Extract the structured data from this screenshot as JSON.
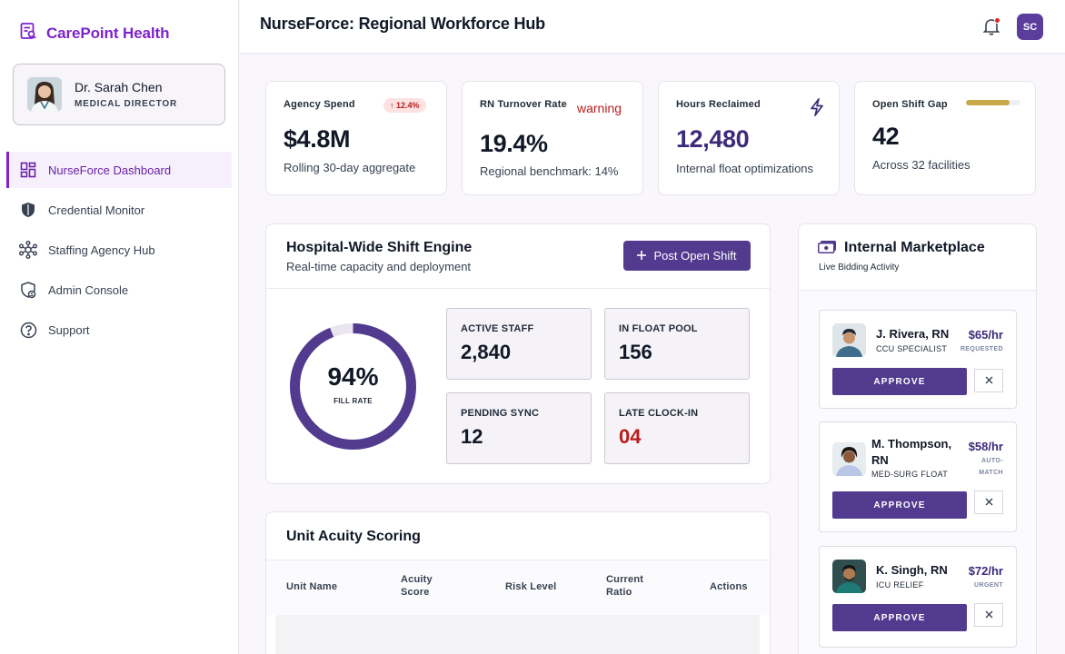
{
  "brand": {
    "name": "CarePoint Health"
  },
  "profile": {
    "name": "Dr. Sarah Chen",
    "role": "MEDICAL DIRECTOR"
  },
  "nav": {
    "items": [
      {
        "label": "NurseForce Dashboard",
        "icon": "dashboard-grid-icon",
        "active": true
      },
      {
        "label": "Credential Monitor",
        "icon": "shield-icon"
      },
      {
        "label": "Staffing Agency Hub",
        "icon": "network-hub-icon"
      },
      {
        "label": "Admin Console",
        "icon": "admin-shield-icon"
      },
      {
        "label": "Support",
        "icon": "help-circle-icon"
      }
    ]
  },
  "header": {
    "title": "NurseForce: Regional Workforce Hub",
    "user_initials": "SC"
  },
  "kpis": [
    {
      "label": "Agency Spend",
      "value": "$4.8M",
      "sub": "Rolling 30-day aggregate",
      "badge": "↑ 12.4%"
    },
    {
      "label": "RN Turnover Rate",
      "value": "19.4%",
      "sub": "Regional benchmark: 14%",
      "flag": "warning"
    },
    {
      "label": "Hours Reclaimed",
      "value": "12,480",
      "sub": "Internal float optimizations",
      "accent": "#3d2a7a"
    },
    {
      "label": "Open Shift Gap",
      "value": "42",
      "sub": "Across 32 facilities",
      "progress": 0.8
    }
  ],
  "engine": {
    "title": "Hospital-Wide Shift Engine",
    "subtitle": "Real-time capacity and deployment",
    "post_button": "Post Open Shift",
    "fill_rate": {
      "value": "94%",
      "label": "FILL RATE"
    },
    "stats": [
      {
        "label": "ACTIVE STAFF",
        "value": "2,840"
      },
      {
        "label": "IN FLOAT POOL",
        "value": "156"
      },
      {
        "label": "PENDING SYNC",
        "value": "12"
      },
      {
        "label": "LATE CLOCK-IN",
        "value": "04"
      }
    ]
  },
  "acuity": {
    "title": "Unit Acuity Scoring",
    "columns": [
      "Unit Name",
      "Acuity Score",
      "Risk Level",
      "Current Ratio",
      "Actions"
    ]
  },
  "marketplace": {
    "title": "Internal Marketplace",
    "subtitle": "Live Bidding Activity",
    "approve_label": "APPROVE",
    "bids": [
      {
        "name": "J. Rivera, RN",
        "role": "CCU SPECIALIST",
        "rate": "$65/hr",
        "tag": "REQUESTED"
      },
      {
        "name": "M. Thompson, RN",
        "role": "MED-SURG FLOAT",
        "rate": "$58/hr",
        "tag": "AUTO-MATCH"
      },
      {
        "name": "K. Singh, RN",
        "role": "ICU RELIEF",
        "rate": "$72/hr",
        "tag": "URGENT"
      }
    ]
  },
  "colors": {
    "brand": "#7e22ce",
    "primary_button": "#523a8f",
    "alert": "#b91c1c",
    "gauge": "#523a8f"
  }
}
